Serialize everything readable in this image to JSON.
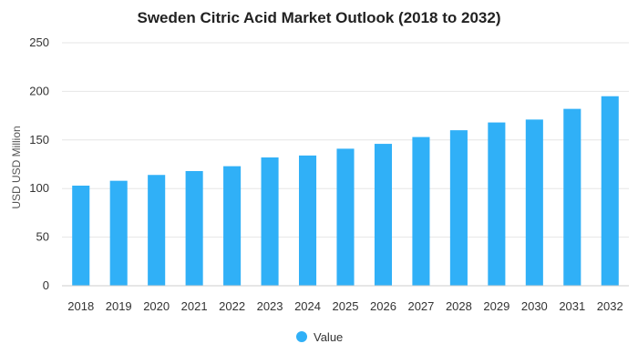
{
  "chart_data": {
    "type": "bar",
    "title": "Sweden Citric Acid Market Outlook (2018 to 2032)",
    "xlabel": "",
    "ylabel": "USD USD Million",
    "categories": [
      "2018",
      "2019",
      "2020",
      "2021",
      "2022",
      "2023",
      "2024",
      "2025",
      "2026",
      "2027",
      "2028",
      "2029",
      "2030",
      "2031",
      "2032"
    ],
    "series": [
      {
        "name": "Value",
        "values": [
          103,
          108,
          114,
          118,
          123,
          132,
          134,
          141,
          146,
          153,
          160,
          168,
          171,
          182,
          195
        ]
      }
    ],
    "ylim": [
      0,
      250
    ],
    "yticks": [
      0,
      50,
      100,
      150,
      200,
      250
    ],
    "grid": true,
    "legend_position": "bottom",
    "color": "#30b0f7"
  }
}
